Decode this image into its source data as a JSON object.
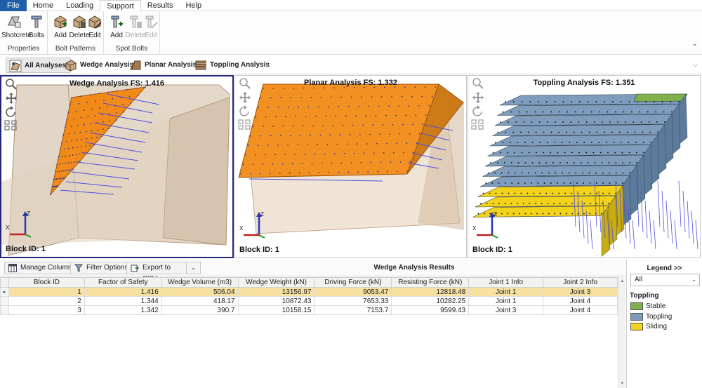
{
  "menu": {
    "tabs": [
      "File",
      "Home",
      "Loading",
      "Support",
      "Results",
      "Help"
    ],
    "active": "Support"
  },
  "ribbon": {
    "groups": [
      {
        "label": "Properties",
        "buttons": [
          {
            "label": "Shotcrete",
            "icon": "shotcrete-icon"
          },
          {
            "label": "Bolts",
            "icon": "bolt-icon"
          }
        ]
      },
      {
        "label": "Bolt Patterns",
        "buttons": [
          {
            "label": "Add",
            "icon": "add-pattern-icon"
          },
          {
            "label": "Delete",
            "icon": "delete-pattern-icon"
          },
          {
            "label": "Edit",
            "icon": "edit-pattern-icon"
          }
        ]
      },
      {
        "label": "Spot Bolts",
        "buttons": [
          {
            "label": "Add",
            "icon": "add-bolt-icon"
          },
          {
            "label": "Delete",
            "icon": "delete-bolt-icon",
            "disabled": true
          },
          {
            "label": "Edit",
            "icon": "edit-bolt-icon",
            "disabled": true
          }
        ]
      }
    ]
  },
  "analysis_tabs": {
    "items": [
      "All Analyses",
      "Wedge Analysis",
      "Planar Analysis",
      "Toppling Analysis"
    ],
    "active": "All Analyses"
  },
  "viewports": [
    {
      "title": "Wedge Analysis FS: 1.416",
      "block": "Block ID: 1",
      "selected": true
    },
    {
      "title": "Planar Analysis FS: 1.332",
      "block": "Block ID: 1",
      "selected": false
    },
    {
      "title": "Toppling Analysis FS: 1.351",
      "block": "Block ID: 1",
      "selected": false
    }
  ],
  "axes": {
    "x": "X",
    "z": "Z"
  },
  "results": {
    "toolbar": {
      "manage_columns": "Manage Columns",
      "filter_options": "Filter Options",
      "export": "Export to CSV..."
    },
    "title": "Wedge Analysis Results",
    "columns": [
      "Block ID",
      "Factor of Safety",
      "Wedge Volume (m3)",
      "Wedge Weight (kN)",
      "Driving Force (kN)",
      "Resisting Force (kN)",
      "Joint 1 Info",
      "Joint 2 Info"
    ],
    "rows": [
      [
        "1",
        "1.416",
        "506.04",
        "13156.97",
        "9053.47",
        "12818.48",
        "Joint 1",
        "Joint 3"
      ],
      [
        "2",
        "1.344",
        "418.17",
        "10872.43",
        "7653.33",
        "10282.25",
        "Joint 1",
        "Joint 4"
      ],
      [
        "3",
        "1.342",
        "390.7",
        "10158.15",
        "7153.7",
        "9599.43",
        "Joint 3",
        "Joint 4"
      ]
    ],
    "selected_row": 0
  },
  "legend": {
    "title": "Legend >>",
    "filter": "All",
    "group": "Toppling",
    "items": [
      {
        "label": "Stable",
        "color": "#7fb04a"
      },
      {
        "label": "Toppling",
        "color": "#7f9cbc"
      },
      {
        "label": "Sliding",
        "color": "#f2d21a"
      }
    ]
  },
  "colors": {
    "accent": "#1f5fa8",
    "wedge": "#f28a1a",
    "rock": "#d9c7b0",
    "bolt": "#3a3ad8",
    "selection_border": "#24247a"
  }
}
